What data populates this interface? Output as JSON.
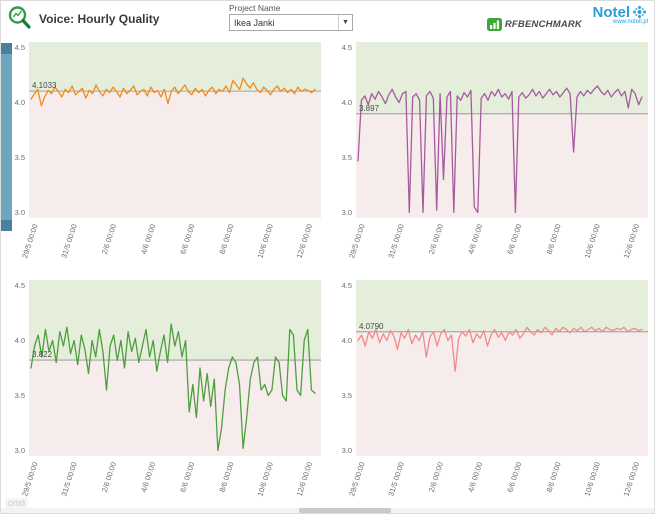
{
  "header": {
    "title": "Voice: Hourly Quality",
    "project_label": "Project Name",
    "project_value": "Ikea Janki",
    "rfbenchmark_label": "RFBENCHMARK",
    "notel_label": "Notel",
    "notel_url": "www.notell.pl"
  },
  "watermark": "cmd",
  "chart_data": {
    "type": "line",
    "title": "Voice: Hourly Quality",
    "x_tick_labels": [
      "29/5 00:00",
      "31/5 00:00",
      "2/6 00:00",
      "4/6 00:00",
      "6/6 00:00",
      "8/6 00:00",
      "10/6 00:00",
      "12/6 00:00"
    ],
    "y_ticks": [
      4.5,
      4.0,
      3.5,
      3.0
    ],
    "ylim": [
      3.0,
      4.5
    ],
    "band_colors": {
      "above_ref": "#e4eedb",
      "below_ref": "#f7ecec"
    },
    "ref_line_color": "#8f8f8f",
    "charts": [
      {
        "name": "top-left",
        "color": "#ef8b1d",
        "ref_value": 4.1033,
        "ref_label": "4.1033",
        "values": [
          4.03,
          4.08,
          4.12,
          3.97,
          4.05,
          4.11,
          4.08,
          4.14,
          4.1,
          4.05,
          4.12,
          4.09,
          4.15,
          4.07,
          4.1,
          4.13,
          4.04,
          4.11,
          4.08,
          4.16,
          4.1,
          4.06,
          4.12,
          4.09,
          4.14,
          4.1,
          4.05,
          4.13,
          4.08,
          4.11,
          4.15,
          4.07,
          4.1,
          4.12,
          4.06,
          4.14,
          4.09,
          4.11,
          4.05,
          4.12,
          3.99,
          4.1,
          4.14,
          4.08,
          4.12,
          4.16,
          4.1,
          4.07,
          4.13,
          4.09,
          4.12,
          4.06,
          4.11,
          4.14,
          4.08,
          4.12,
          4.1,
          4.15,
          4.09,
          4.2,
          4.16,
          4.12,
          4.22,
          4.17,
          4.13,
          4.18,
          4.12,
          4.09,
          4.14,
          4.11,
          4.07,
          4.12,
          4.15,
          4.1,
          4.13,
          4.09,
          4.12,
          4.08,
          4.14,
          4.1,
          4.12,
          4.11,
          4.09,
          4.12
        ]
      },
      {
        "name": "top-right",
        "color": "#a65b9e",
        "ref_value": 3.897,
        "ref_label": "3.897",
        "values": [
          3.47,
          4.02,
          4.06,
          3.98,
          4.08,
          4.03,
          4.1,
          4.05,
          3.99,
          4.07,
          4.12,
          4.05,
          4.0,
          4.08,
          4.1,
          3.0,
          4.05,
          4.08,
          4.02,
          3.0,
          4.06,
          4.1,
          4.04,
          3.02,
          4.08,
          3.3,
          4.05,
          4.1,
          3.0,
          4.06,
          4.02,
          4.09,
          4.05,
          4.11,
          3.05,
          3.0,
          4.04,
          4.08,
          4.02,
          4.1,
          4.06,
          4.12,
          4.05,
          4.08,
          4.03,
          4.1,
          3.0,
          4.05,
          4.09,
          4.04,
          4.07,
          4.12,
          4.06,
          4.1,
          4.04,
          4.08,
          4.12,
          4.07,
          4.1,
          4.05,
          4.09,
          4.13,
          4.08,
          3.55,
          4.05,
          4.1,
          4.06,
          4.11,
          4.08,
          4.12,
          4.15,
          4.1,
          4.07,
          4.11,
          4.05,
          4.09,
          4.12,
          4.06,
          4.1,
          3.95,
          4.12,
          4.08,
          3.98,
          4.05
        ]
      },
      {
        "name": "bottom-left",
        "color": "#4f9e3e",
        "ref_value": 3.822,
        "ref_label": "3.822",
        "values": [
          3.75,
          3.95,
          4.05,
          3.85,
          4.1,
          3.9,
          4.0,
          3.8,
          4.08,
          3.95,
          4.12,
          3.88,
          4.0,
          3.78,
          4.05,
          3.92,
          3.7,
          4.0,
          3.85,
          4.1,
          3.9,
          3.55,
          3.95,
          4.05,
          3.82,
          4.0,
          3.75,
          4.08,
          3.9,
          4.02,
          3.8,
          3.95,
          4.1,
          3.85,
          4.0,
          3.72,
          3.9,
          4.05,
          3.8,
          4.15,
          3.95,
          4.08,
          3.85,
          4.0,
          3.35,
          3.6,
          3.3,
          3.75,
          3.45,
          3.7,
          3.4,
          3.65,
          3.0,
          3.2,
          3.55,
          3.75,
          3.85,
          3.8,
          3.6,
          3.02,
          3.3,
          3.65,
          3.8,
          3.85,
          3.55,
          3.6,
          3.5,
          3.55,
          3.85,
          3.8,
          3.5,
          3.45,
          4.1,
          4.05,
          3.55,
          3.5,
          4.0,
          4.1,
          3.55,
          3.52
        ]
      },
      {
        "name": "bottom-right",
        "color": "#ef8a8a",
        "ref_value": 4.079,
        "ref_label": "4.0790",
        "values": [
          4.0,
          4.05,
          3.95,
          4.08,
          4.02,
          4.1,
          3.98,
          4.06,
          4.0,
          4.09,
          4.04,
          3.92,
          4.07,
          4.02,
          4.1,
          3.97,
          4.05,
          4.0,
          4.08,
          3.85,
          4.03,
          4.08,
          3.95,
          4.06,
          4.1,
          4.0,
          4.05,
          3.72,
          4.02,
          4.08,
          4.04,
          4.1,
          3.98,
          4.06,
          4.02,
          4.09,
          3.95,
          4.05,
          4.1,
          4.03,
          4.07,
          4.0,
          4.08,
          4.05,
          4.1,
          4.02,
          4.06,
          4.12,
          4.08,
          4.05,
          4.1,
          4.07,
          4.12,
          4.09,
          4.05,
          4.11,
          4.08,
          4.12,
          4.1,
          4.07,
          4.11,
          4.09,
          4.12,
          4.08,
          4.1,
          4.12,
          4.09,
          4.11,
          4.08,
          4.12,
          4.1,
          4.09,
          4.11,
          4.1,
          4.12,
          4.08,
          4.1,
          4.11,
          4.09,
          4.1
        ]
      }
    ]
  }
}
